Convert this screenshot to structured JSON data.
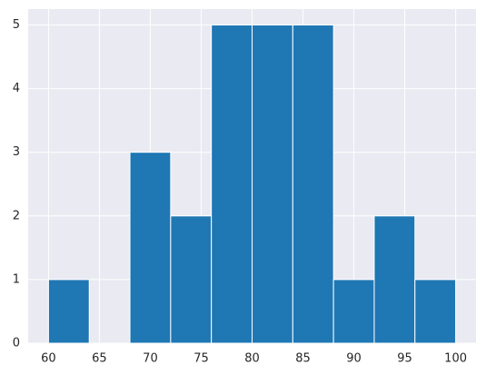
{
  "chart_data": {
    "type": "histogram",
    "bins": [
      60,
      64,
      68,
      72,
      76,
      80,
      84,
      88,
      92,
      96,
      100
    ],
    "values": [
      1,
      0,
      3,
      2,
      5,
      5,
      5,
      1,
      2,
      1
    ],
    "color": "#1f77b4",
    "xlim": [
      58,
      102
    ],
    "xticks": [
      60,
      65,
      70,
      75,
      80,
      85,
      90,
      95,
      100
    ],
    "ylim": [
      0,
      5.25
    ],
    "yticks": [
      0,
      1,
      2,
      3,
      4,
      5
    ],
    "grid": true
  }
}
